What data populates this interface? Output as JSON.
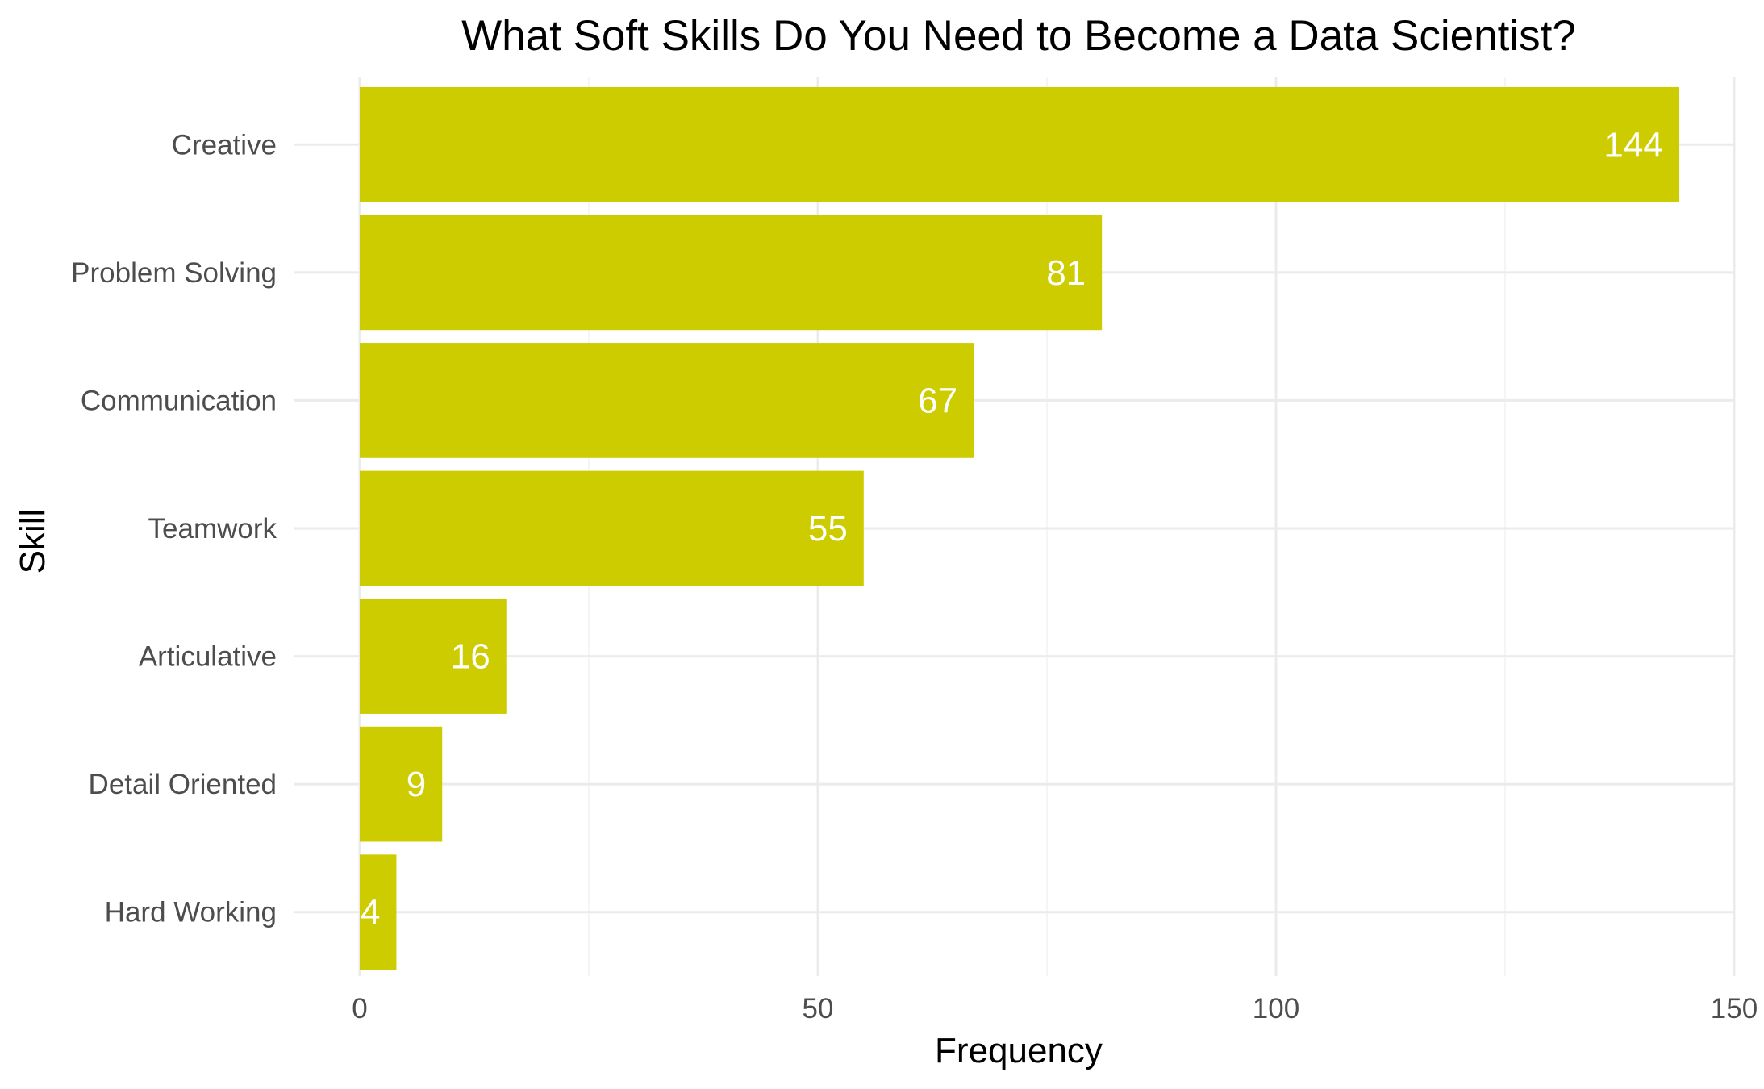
{
  "chart_data": {
    "type": "bar",
    "orientation": "horizontal",
    "title": "What Soft Skills Do You Need to Become a Data Scientist?",
    "xlabel": "Frequency",
    "ylabel": "Skill",
    "categories": [
      "Creative",
      "Problem Solving",
      "Communication",
      "Teamwork",
      "Articulative",
      "Detail Oriented",
      "Hard Working"
    ],
    "values": [
      144,
      81,
      67,
      55,
      16,
      9,
      4
    ],
    "data_labels": [
      "144",
      "81",
      "67",
      "55",
      "16",
      "9",
      "4"
    ],
    "xlim": [
      0,
      150
    ],
    "x_ticks": [
      0,
      50,
      100,
      150
    ],
    "x_tick_labels": [
      "0",
      "50",
      "100",
      "150"
    ],
    "grid": true,
    "legend": "none",
    "colors": {
      "bar": "#cccc00",
      "bar_label": "#ffffff",
      "grid_major": "#ebebeb",
      "grid_minor": "#f2f2f2",
      "background": "#ffffff"
    }
  }
}
